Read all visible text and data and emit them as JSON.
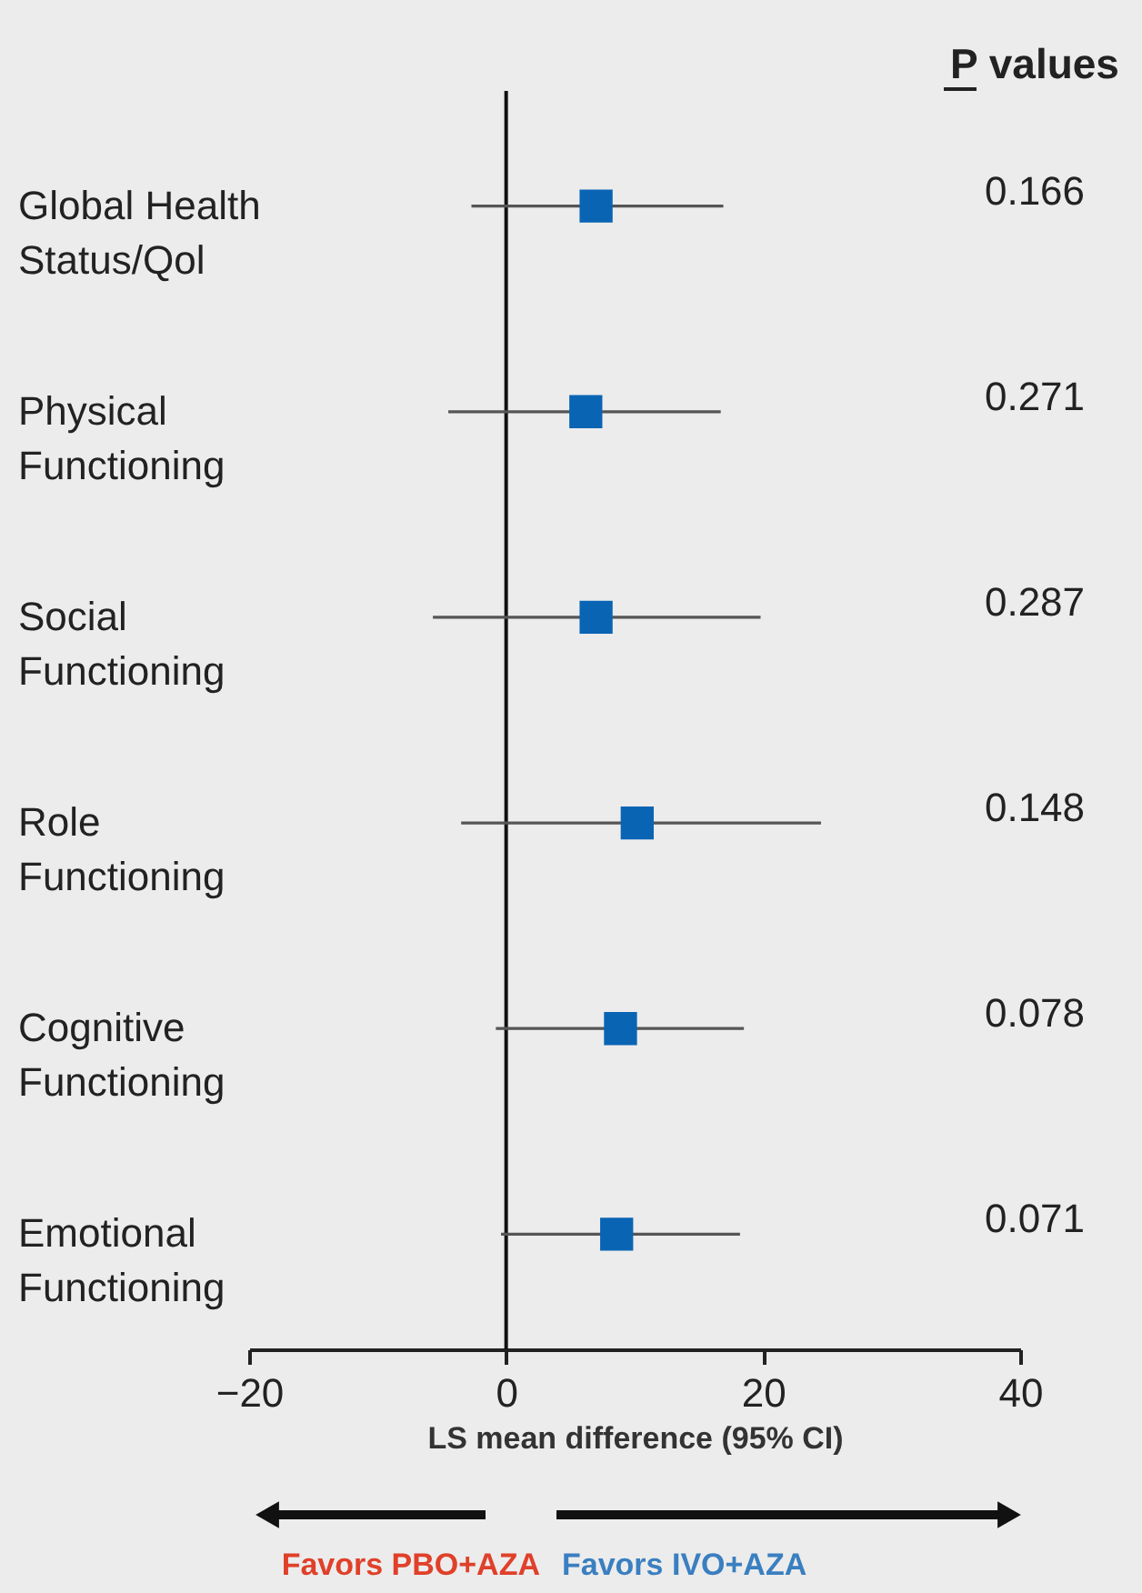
{
  "chart_data": {
    "type": "scatter",
    "orientation": "horizontal",
    "marker": "square",
    "categories": [
      "Global Health Status/Qol",
      "Physical Functioning",
      "Social Functioning",
      "Role Functioning",
      "Cognitive Functioning",
      "Emotional Functioning"
    ],
    "series": [
      {
        "color": "#0a64b4",
        "values": [
          7.0,
          6.2,
          7.0,
          10.2,
          8.9,
          8.6
        ],
        "errors": [
          [
            -2.7,
            16.9
          ],
          [
            -4.5,
            16.7
          ],
          [
            -5.7,
            19.8
          ],
          [
            -3.5,
            24.5
          ],
          [
            -0.8,
            18.5
          ],
          [
            -0.4,
            18.2
          ]
        ]
      }
    ],
    "xlim": [
      -20,
      40
    ],
    "xticks": [
      -20,
      0,
      20,
      40
    ],
    "xlabel": "LS mean difference (95% CI)",
    "ref_lines": [
      {
        "axis": "x",
        "value": 0
      }
    ],
    "grid": false,
    "annotations": [
      "P values",
      "0.166",
      "0.271",
      "0.287",
      "0.148",
      "0.078",
      "0.071",
      "Favors PBO+AZA",
      "Favors IVO+AZA"
    ]
  }
}
